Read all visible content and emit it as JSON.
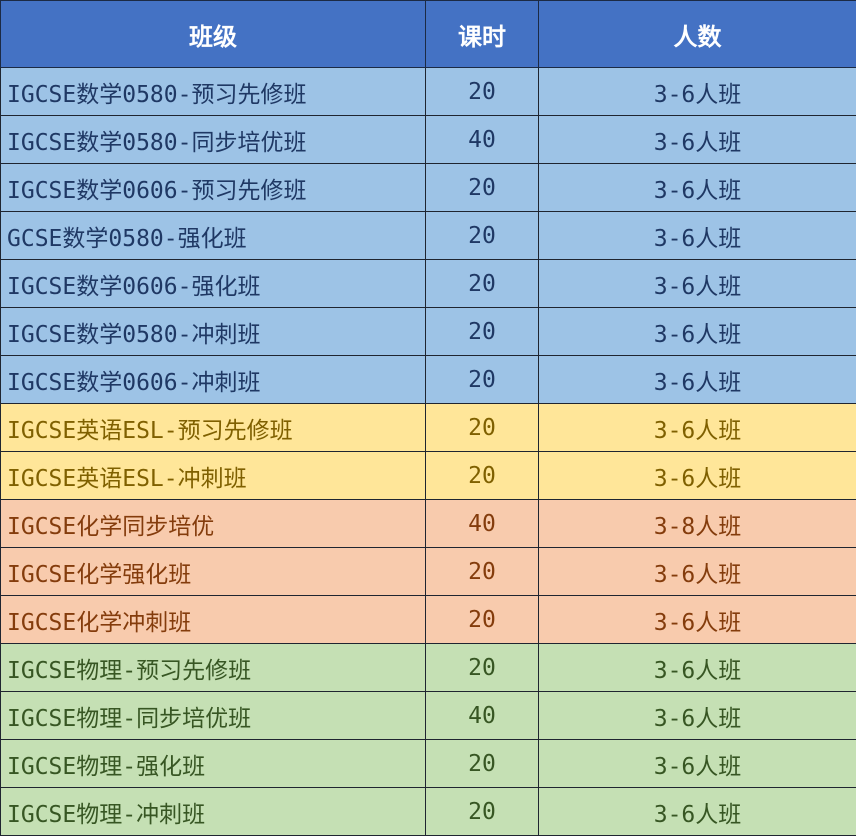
{
  "header": {
    "class_name": "班级",
    "hours": "课时",
    "size": "人数"
  },
  "group_colors": {
    "blue": "#9dc3e6",
    "yellow": "#ffe699",
    "orange": "#f8cbad",
    "green": "#c5e0b4",
    "header": "#4472c4"
  },
  "rows": [
    {
      "name": "IGCSE数学0580-预习先修班",
      "hours": "20",
      "size": "3-6人班",
      "group": "blue"
    },
    {
      "name": "IGCSE数学0580-同步培优班",
      "hours": "40",
      "size": "3-6人班",
      "group": "blue"
    },
    {
      "name": "IGCSE数学0606-预习先修班",
      "hours": "20",
      "size": "3-6人班",
      "group": "blue"
    },
    {
      "name": "GCSE数学0580-强化班",
      "hours": "20",
      "size": "3-6人班",
      "group": "blue"
    },
    {
      "name": "IGCSE数学0606-强化班",
      "hours": "20",
      "size": "3-6人班",
      "group": "blue"
    },
    {
      "name": "IGCSE数学0580-冲刺班",
      "hours": "20",
      "size": "3-6人班",
      "group": "blue"
    },
    {
      "name": "IGCSE数学0606-冲刺班",
      "hours": "20",
      "size": "3-6人班",
      "group": "blue"
    },
    {
      "name": "IGCSE英语ESL-预习先修班",
      "hours": "20",
      "size": "3-6人班",
      "group": "yellow"
    },
    {
      "name": "IGCSE英语ESL-冲刺班",
      "hours": "20",
      "size": "3-6人班",
      "group": "yellow"
    },
    {
      "name": "IGCSE化学同步培优",
      "hours": "40",
      "size": "3-8人班",
      "group": "orange"
    },
    {
      "name": "IGCSE化学强化班",
      "hours": "20",
      "size": "3-6人班",
      "group": "orange"
    },
    {
      "name": "IGCSE化学冲刺班",
      "hours": "20",
      "size": "3-6人班",
      "group": "orange"
    },
    {
      "name": "IGCSE物理-预习先修班",
      "hours": "20",
      "size": "3-6人班",
      "group": "green"
    },
    {
      "name": "IGCSE物理-同步培优班",
      "hours": "40",
      "size": "3-6人班",
      "group": "green"
    },
    {
      "name": "IGCSE物理-强化班",
      "hours": "20",
      "size": "3-6人班",
      "group": "green"
    },
    {
      "name": "IGCSE物理-冲刺班",
      "hours": "20",
      "size": "3-6人班",
      "group": "green"
    }
  ]
}
